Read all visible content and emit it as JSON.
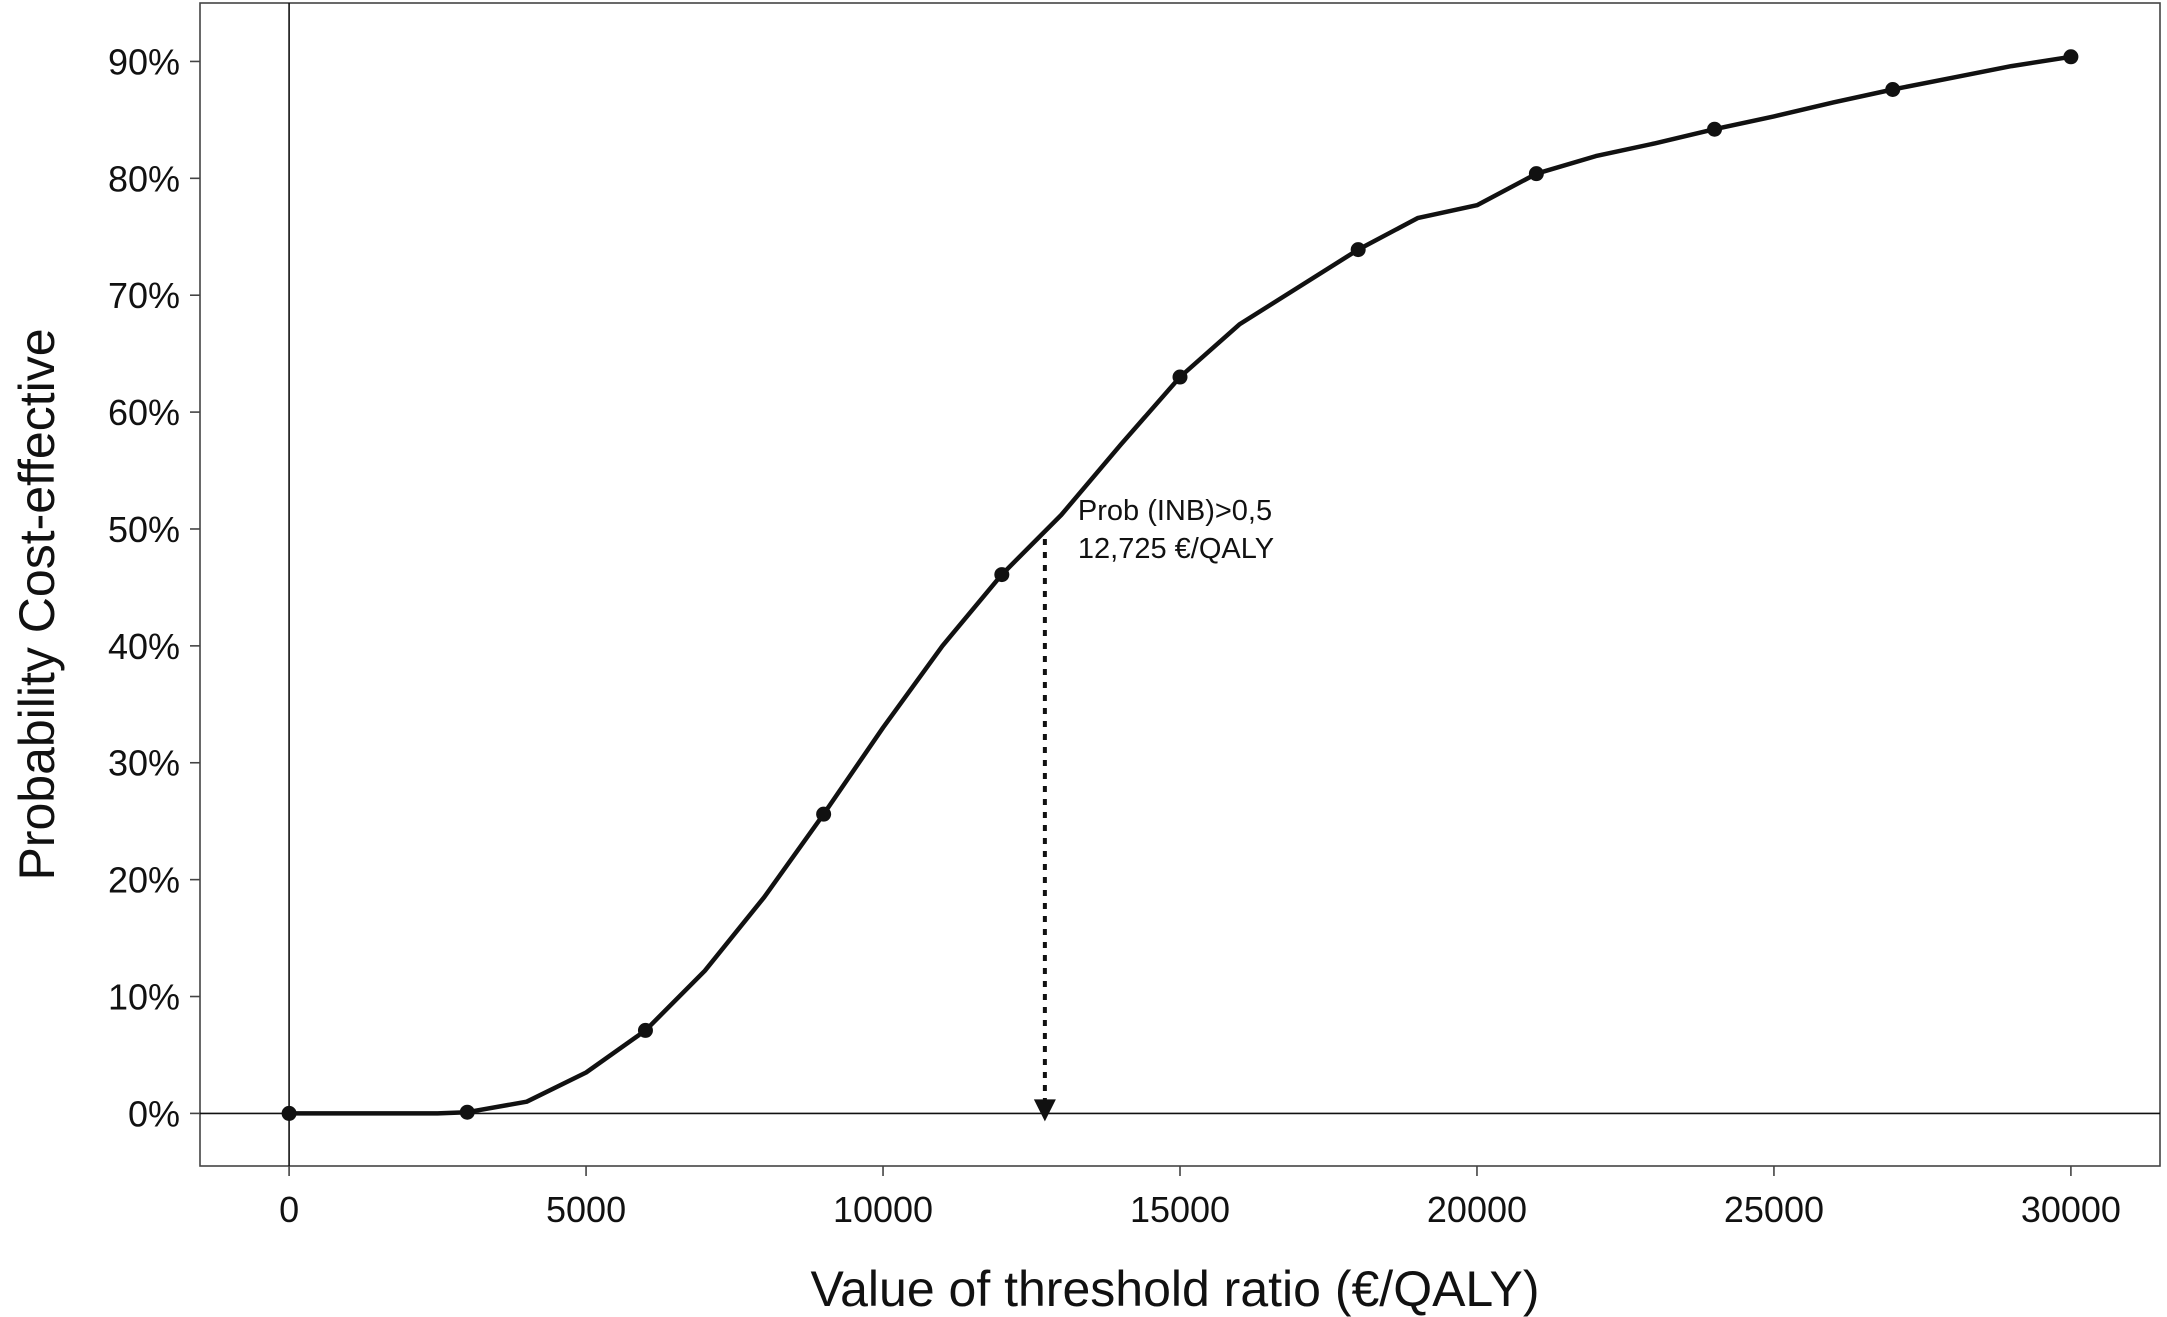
{
  "chart_data": {
    "type": "line",
    "xlabel": "Value of threshold ratio (€/QALY)",
    "ylabel": "Probability Cost-effective",
    "xlim": [
      -1500,
      31500
    ],
    "ylim": [
      -0.045,
      0.95
    ],
    "x_ticks": [
      0,
      5000,
      10000,
      15000,
      20000,
      25000,
      30000
    ],
    "x_tick_labels": [
      "0",
      "5000",
      "10000",
      "15000",
      "20000",
      "25000",
      "30000"
    ],
    "y_ticks": [
      0,
      0.1,
      0.2,
      0.3,
      0.4,
      0.5,
      0.6,
      0.7,
      0.8,
      0.9
    ],
    "y_tick_labels": [
      "0%",
      "10%",
      "20%",
      "30%",
      "40%",
      "50%",
      "60%",
      "70%",
      "80%",
      "90%"
    ],
    "grid": false,
    "series": [
      {
        "color": "#111111",
        "x": [
          0,
          1000,
          2000,
          2500,
          3000,
          4000,
          5000,
          6000,
          7000,
          8000,
          9000,
          10000,
          11000,
          12000,
          13000,
          14000,
          15000,
          16000,
          17000,
          18000,
          19000,
          20000,
          21000,
          22000,
          23000,
          24000,
          25000,
          26000,
          27000,
          28000,
          29000,
          30000
        ],
        "values": [
          0,
          0,
          0,
          0,
          0.001,
          0.01,
          0.035,
          0.071,
          0.122,
          0.185,
          0.256,
          0.33,
          0.4,
          0.461,
          0.512,
          0.572,
          0.63,
          0.675,
          0.707,
          0.739,
          0.766,
          0.777,
          0.804,
          0.819,
          0.83,
          0.842,
          0.853,
          0.865,
          0.876,
          0.886,
          0.896,
          0.904
        ]
      }
    ],
    "markers": {
      "x": [
        0,
        3000,
        6000,
        9000,
        12000,
        15000,
        18000,
        21000,
        24000,
        27000,
        30000
      ],
      "values": [
        0,
        0.001,
        0.071,
        0.256,
        0.461,
        0.63,
        0.739,
        0.804,
        0.842,
        0.876,
        0.904
      ]
    },
    "reference_lines": {
      "vertical_at_x": 0,
      "horizontal_at_y": 0
    },
    "annotation": {
      "line1": "Prob (INB)>0,5",
      "line2": "12,725 €/QALY",
      "x": 12725,
      "y": 0.5
    }
  }
}
